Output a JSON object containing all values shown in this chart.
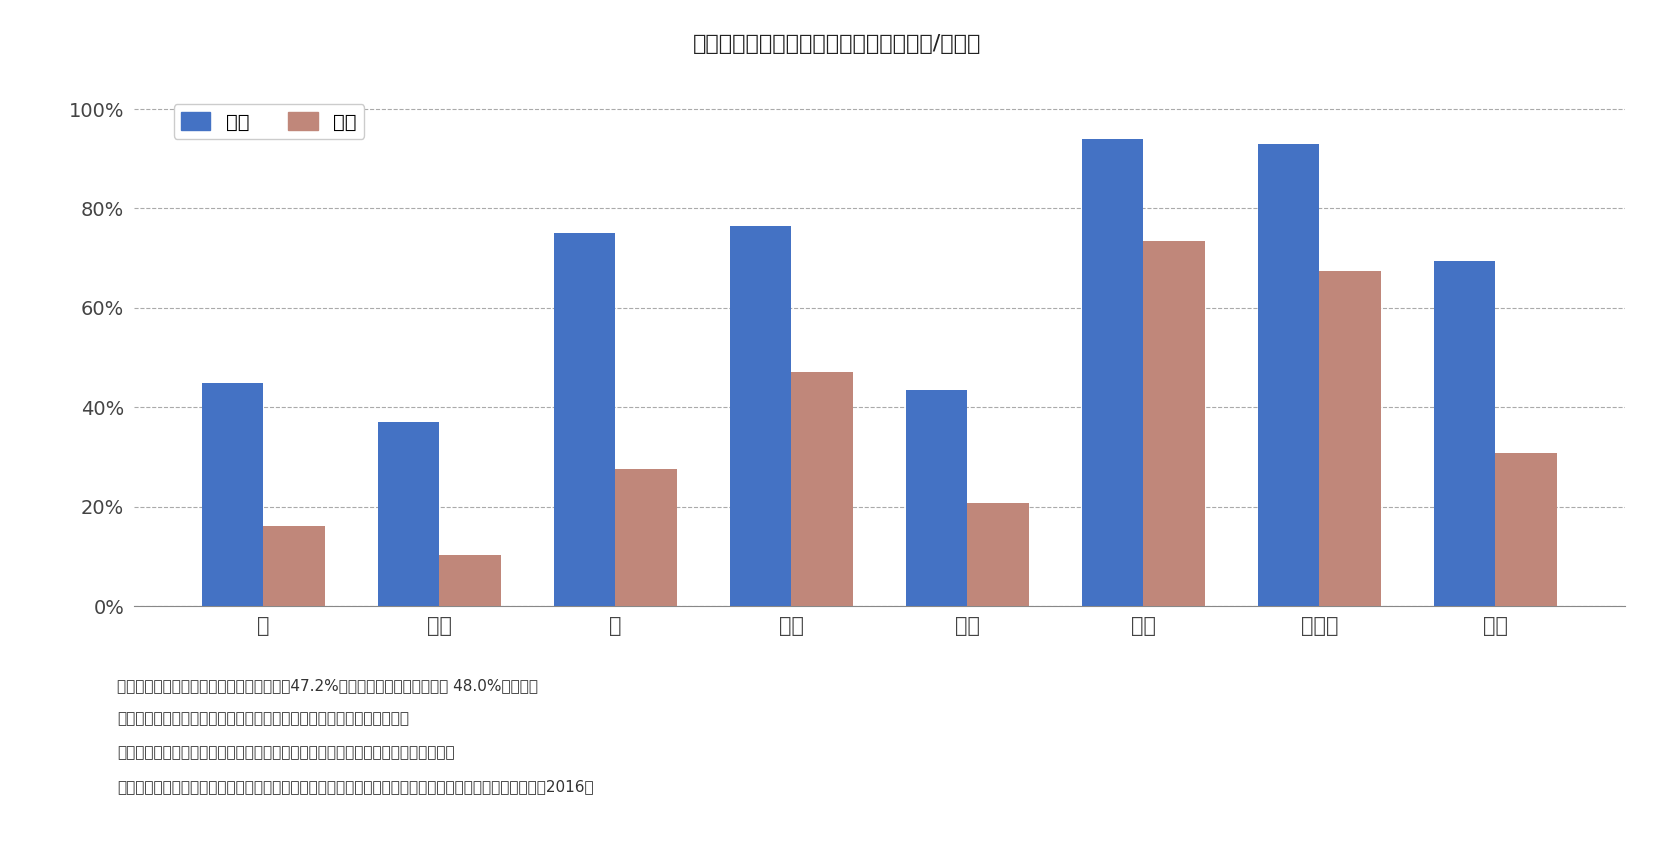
{
  "title": "図表５　がんの部位別５年生存率（日本/中国）",
  "categories": [
    "肺",
    "肝臓",
    "胃",
    "大腸",
    "食道",
    "乳腺",
    "甲状腺",
    "全体"
  ],
  "japan_values": [
    0.45,
    0.37,
    0.75,
    0.765,
    0.435,
    0.94,
    0.93,
    0.695
  ],
  "china_values": [
    0.162,
    0.103,
    0.276,
    0.472,
    0.207,
    0.734,
    0.674,
    0.308
  ],
  "japan_color": "#4472C4",
  "china_color": "#C0877A",
  "legend_japan": "日本",
  "legend_china": "中国",
  "yticks": [
    0.0,
    0.2,
    0.4,
    0.6,
    0.8,
    1.0
  ],
  "ytick_labels": [
    "0%",
    "20%",
    "40%",
    "60%",
    "80%",
    "100%"
  ],
  "ylim": [
    0,
    1.05
  ],
  "bar_width": 0.35,
  "note_line1": "（注）中国の大腸の５年生存率は、結腸（47.2%）のもので、直腸の場合は 48.0%である。",
  "note_line2": "　　　乳腺（乳がん）については日本・中国とも女性のデータである。",
  "note_line3": "（出所）日本：国立がん研究センター、全がん協部位別臨床病期別５年相対生存率",
  "note_line4": "　　　　中国：国家がんセンター全国腫瘍予防・治療研究弁公室、中国腫瘍登記工作指導ハンドブック（2016）",
  "background_color": "#FFFFFF",
  "grid_color": "#AAAAAA",
  "axis_color": "#888888"
}
